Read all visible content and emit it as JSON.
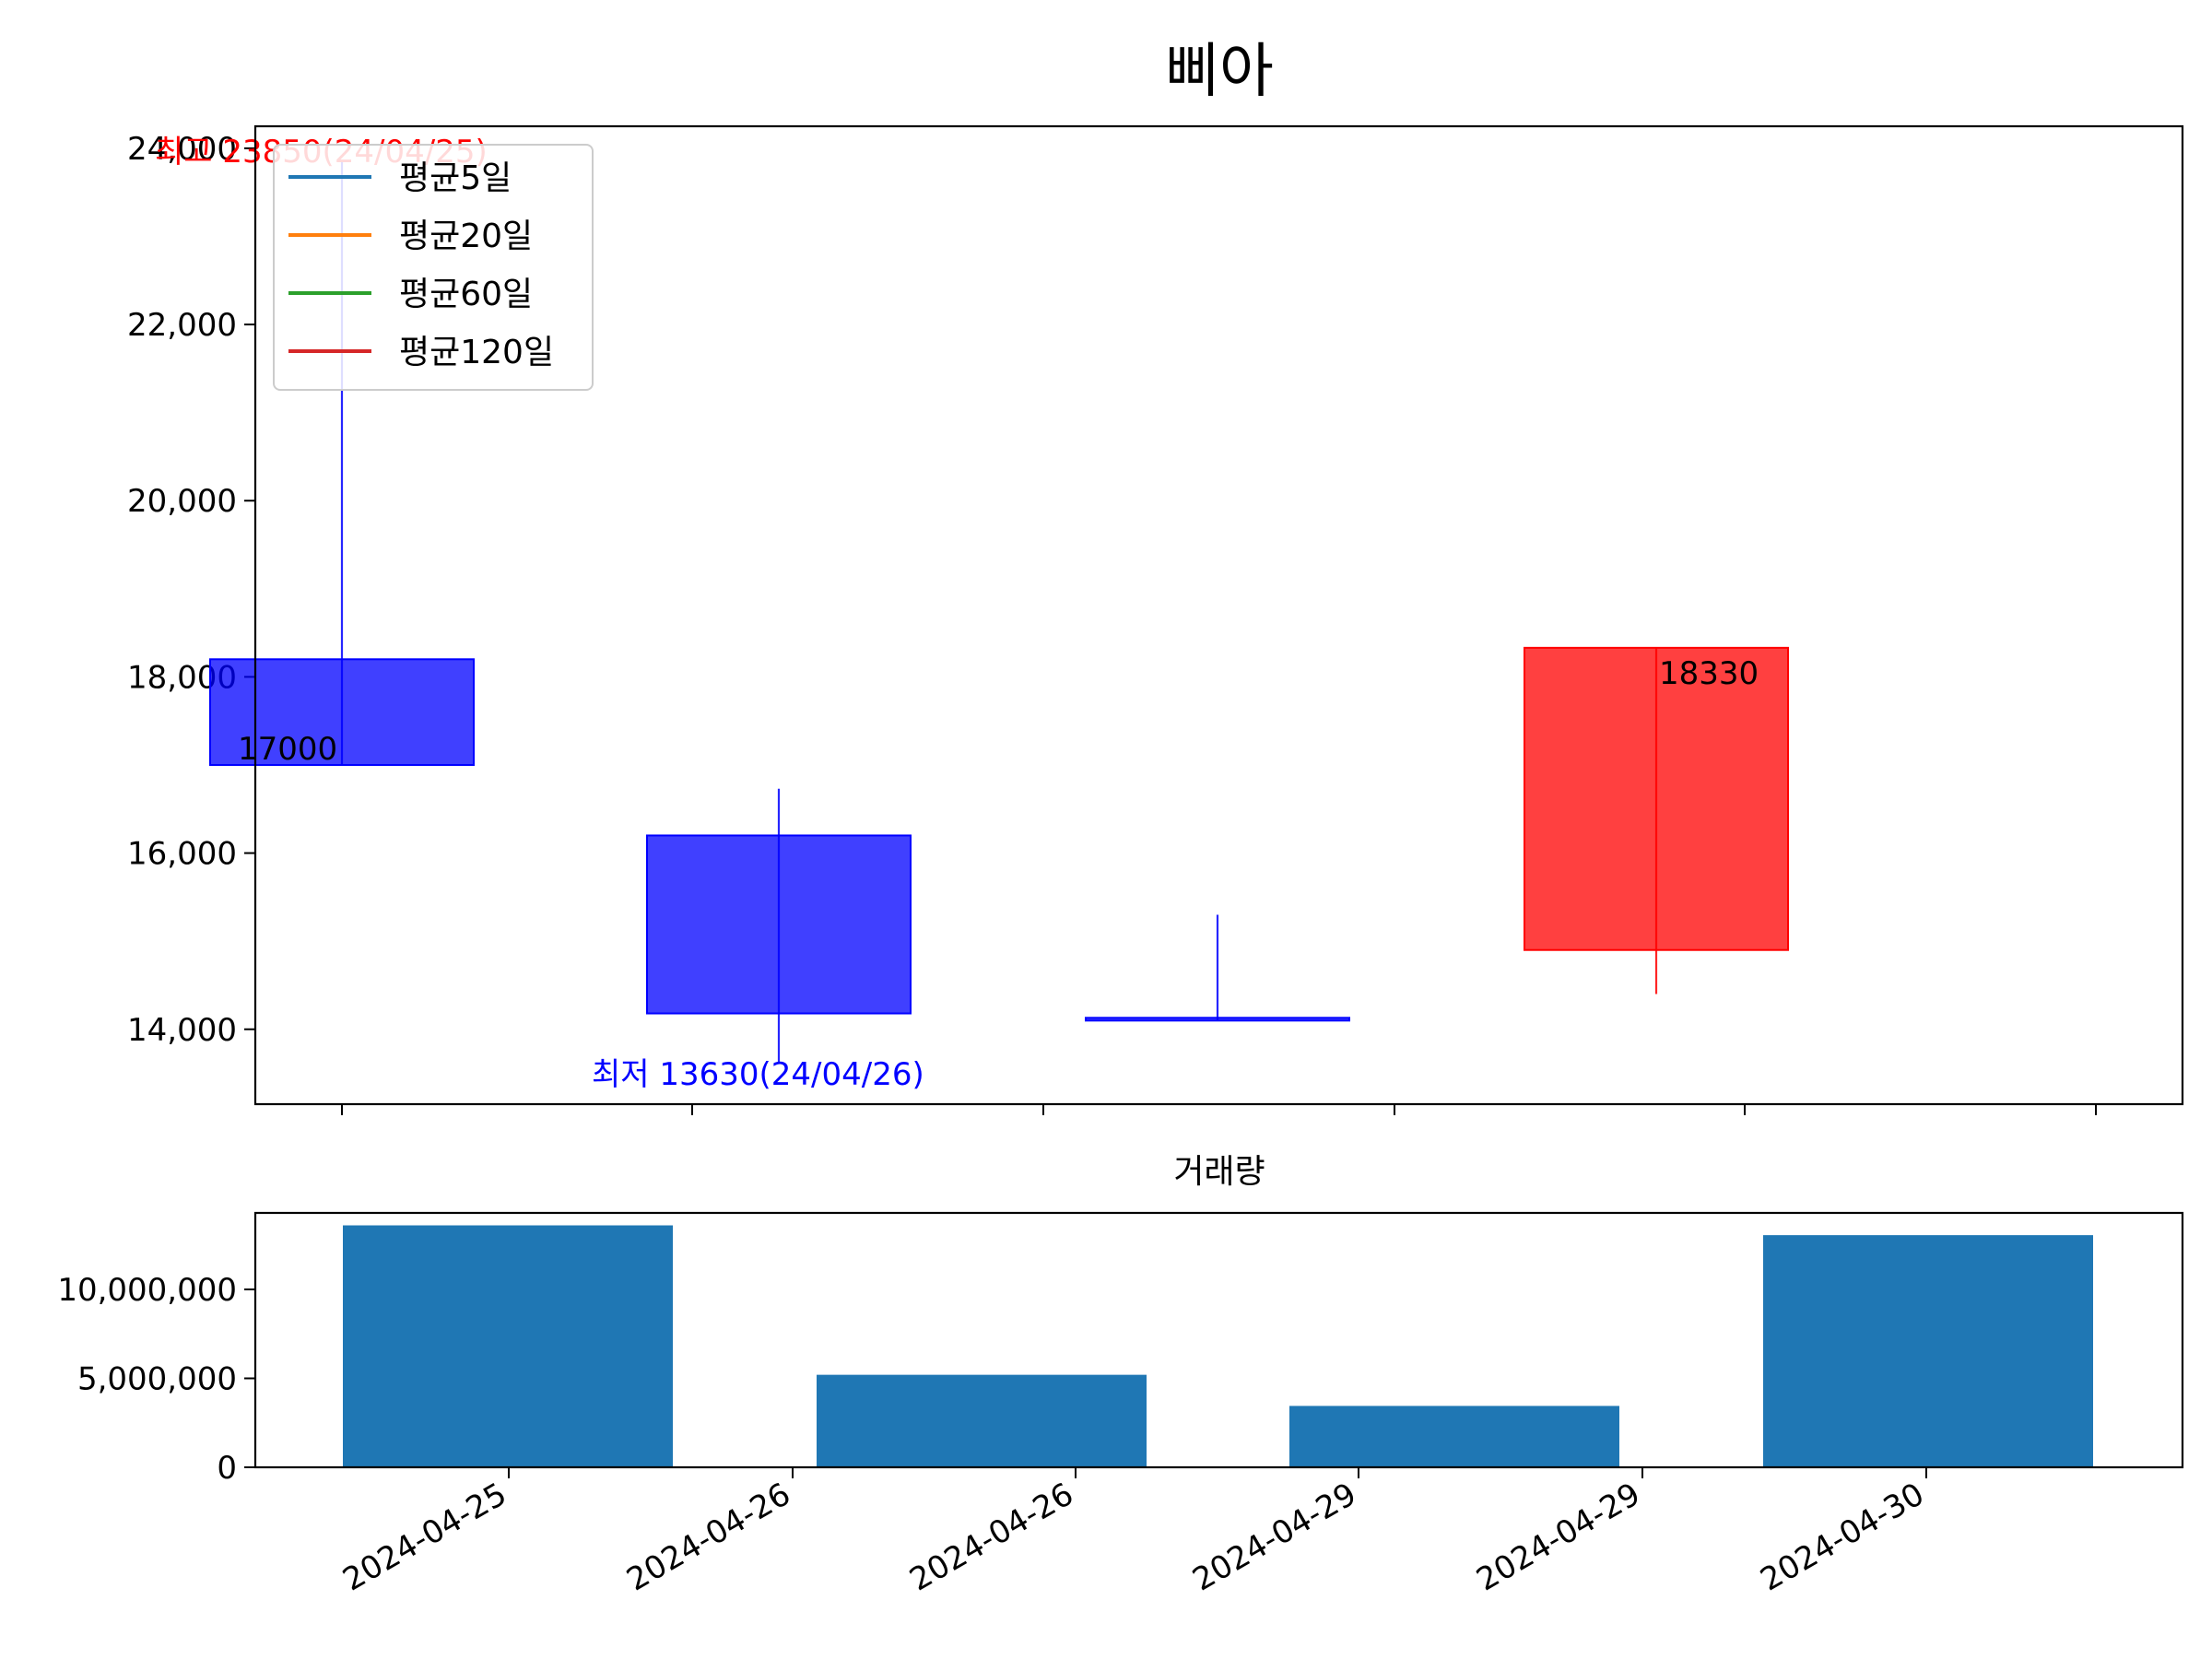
{
  "chart_data": [
    {
      "type": "candlestick",
      "title": "삐아",
      "ylim": [
        13150,
        24250
      ],
      "yticks": [
        14000,
        16000,
        18000,
        20000,
        22000,
        24000
      ],
      "ytick_labels": [
        "14,000",
        "16,000",
        "18,000",
        "20,000",
        "22,000",
        "24,000"
      ],
      "candles": [
        {
          "date": "2024-04-25",
          "open": 18200,
          "high": 23850,
          "low": 17000,
          "close": 17000
        },
        {
          "date": "2024-04-26",
          "open": 16200,
          "high": 16730,
          "low": 13630,
          "close": 14180
        },
        {
          "date": "2024-04-29",
          "open": 14130,
          "high": 15300,
          "low": 14100,
          "close": 14110
        },
        {
          "date": "2024-04-30",
          "open": 14900,
          "high": 18330,
          "low": 14400,
          "close": 18330
        }
      ],
      "legend": [
        {
          "label": "평균5일",
          "color": "#1f77b4"
        },
        {
          "label": "평균20일",
          "color": "#ff7f0e"
        },
        {
          "label": "평균60일",
          "color": "#2ca02c"
        },
        {
          "label": "평균120일",
          "color": "#d62728"
        }
      ],
      "annotations": {
        "high_label": "최고 23850(24/04/25)",
        "low_label": "최저 13630(24/04/26)",
        "close_first": "17000",
        "close_last": "18330"
      },
      "colors": {
        "up": "#ff0000",
        "down": "#0000ff"
      }
    },
    {
      "type": "bar",
      "title": "거래량",
      "categories": [
        "2024-04-25",
        "2024-04-26",
        "2024-04-29",
        "2024-04-30"
      ],
      "values": [
        13600000,
        5200000,
        3450000,
        13050000
      ],
      "ylim": [
        0,
        14300000
      ],
      "yticks": [
        0,
        5000000,
        10000000
      ],
      "ytick_labels": [
        "0",
        "5,000,000",
        "10,000,000"
      ],
      "xtick_labels": [
        "2024-04-25",
        "2024-04-26",
        "2024-04-26",
        "2024-04-29",
        "2024-04-29",
        "2024-04-30"
      ],
      "color": "#1f77b4"
    }
  ]
}
